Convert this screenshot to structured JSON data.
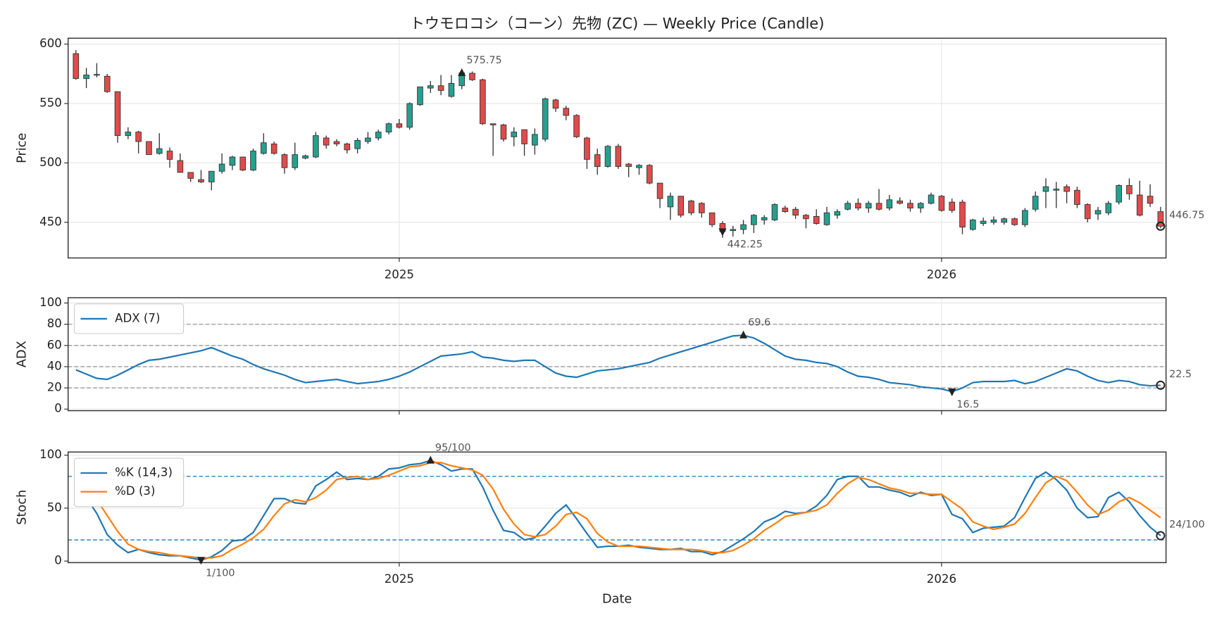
{
  "chart_data": [
    {
      "type": "candlestick",
      "title": "トウモロコシ（コーン）先物 (ZC) — Weekly Price (Candle)",
      "ylabel": "Price",
      "categories": [
        null,
        null,
        null,
        null,
        null,
        null,
        null,
        null,
        null,
        null,
        null,
        null,
        null,
        null,
        null,
        null,
        null,
        null,
        null,
        null,
        null,
        null,
        null,
        null,
        null,
        null,
        null,
        null,
        null,
        null,
        null,
        "2025",
        null,
        null,
        null,
        null,
        null,
        null,
        null,
        null,
        null,
        null,
        null,
        null,
        null,
        null,
        null,
        null,
        null,
        null,
        null,
        null,
        null,
        null,
        null,
        null,
        null,
        null,
        null,
        null,
        null,
        null,
        null,
        null,
        null,
        null,
        null,
        null,
        null,
        null,
        null,
        null,
        null,
        null,
        null,
        null,
        null,
        null,
        null,
        null,
        null,
        null,
        null,
        "2026",
        null,
        null,
        null,
        null,
        null,
        null,
        null,
        null,
        null,
        null,
        null,
        null,
        null,
        null,
        null,
        null,
        null,
        null,
        null,
        null,
        null
      ],
      "open": [
        592,
        571,
        574,
        573,
        560,
        523,
        526,
        518,
        508,
        510,
        502,
        492,
        486,
        484,
        493,
        498,
        505,
        494,
        508,
        516,
        507,
        496,
        504,
        505,
        521,
        518,
        516,
        512,
        518,
        521,
        526,
        533,
        530,
        549,
        563,
        565,
        556,
        565,
        575.5,
        570,
        533,
        532,
        522,
        528,
        515,
        520,
        553,
        546,
        540,
        521,
        507,
        497,
        514,
        499,
        496,
        498,
        483,
        463,
        472,
        468,
        466,
        458,
        449,
        443,
        444,
        448,
        452,
        452,
        462,
        461,
        456,
        455,
        448,
        456,
        461,
        466,
        462,
        466,
        462,
        468,
        466,
        462,
        466,
        472,
        467,
        467,
        444,
        449,
        450,
        450,
        453,
        448,
        461,
        476,
        477,
        480,
        477,
        465,
        457,
        458,
        467,
        481,
        473,
        472,
        459
      ],
      "high": [
        595,
        580,
        584,
        575,
        560,
        530,
        527,
        518,
        525,
        513,
        508,
        492,
        494,
        493,
        508,
        506,
        505,
        512,
        525,
        518,
        508,
        517,
        507,
        526,
        523,
        520,
        517,
        521,
        526,
        528,
        534,
        537,
        551,
        564,
        569,
        574,
        574,
        577,
        577,
        571,
        533,
        533,
        530,
        528,
        529,
        555,
        554,
        548,
        541,
        522,
        512,
        515,
        516,
        500,
        499,
        499,
        483,
        475,
        472,
        469,
        467,
        458,
        451,
        447,
        452,
        457,
        456,
        466,
        464,
        463,
        457,
        461,
        463,
        461,
        468,
        470,
        468,
        478,
        473,
        471,
        469,
        467,
        475,
        473,
        470,
        469,
        453,
        454,
        455,
        454,
        454,
        462,
        476,
        487,
        484,
        482,
        480,
        466,
        463,
        468,
        482,
        487,
        485,
        482,
        463
      ],
      "low": [
        570,
        563,
        572,
        559,
        517,
        520,
        508,
        507,
        507,
        496,
        492,
        484,
        483,
        477,
        491,
        494,
        493,
        493,
        507,
        507,
        491,
        494,
        503,
        504,
        512,
        514,
        508,
        508,
        516,
        519,
        524,
        529,
        528,
        548,
        559,
        557,
        555,
        562,
        569,
        532,
        506,
        518,
        514,
        506,
        507,
        518,
        543,
        536,
        521,
        495,
        490,
        496,
        495,
        488,
        490,
        482,
        462,
        452,
        454,
        456,
        454,
        446,
        437,
        438,
        440,
        441,
        448,
        451,
        458,
        453,
        445,
        448,
        447,
        453,
        460,
        460,
        458,
        460,
        460,
        465,
        459,
        458,
        465,
        459,
        458,
        440,
        443,
        447,
        448,
        448,
        447,
        446,
        459,
        462,
        462,
        466,
        462,
        450,
        452,
        456,
        465,
        469,
        455,
        463,
        445
      ],
      "close": [
        571,
        574,
        574.5,
        560,
        523,
        526,
        518,
        507,
        512,
        503,
        492,
        487,
        484,
        493,
        499,
        505,
        494,
        510,
        517,
        508,
        496,
        507,
        506,
        523,
        515,
        516,
        511,
        519,
        521,
        526,
        533,
        530,
        550,
        564,
        565,
        561,
        567,
        575.75,
        570,
        533,
        532,
        520,
        526,
        516,
        524,
        554,
        546,
        540,
        522,
        503,
        497,
        514,
        497,
        497,
        498,
        483,
        470,
        472,
        456,
        458,
        458,
        448,
        442.25,
        444,
        448,
        456,
        454,
        465,
        459,
        456,
        453,
        449,
        458,
        459,
        466,
        462,
        466,
        461,
        469,
        466,
        462,
        466,
        473,
        460,
        460,
        446,
        452,
        451,
        452,
        453,
        448,
        460,
        472,
        480,
        478,
        476,
        465,
        453,
        460,
        466,
        481,
        474,
        456,
        466,
        446.75
      ],
      "up_color": "#26a08e",
      "down_color": "#e04b4b",
      "ylim": [
        420,
        605
      ],
      "yticks": [
        450,
        500,
        550,
        600
      ],
      "grid": true,
      "annotations": [
        {
          "kind": "max",
          "label": "575.75"
        },
        {
          "kind": "min",
          "label": "442.25"
        },
        {
          "kind": "last",
          "label": "446.75"
        }
      ]
    },
    {
      "type": "line",
      "ylabel": "ADX",
      "series": [
        {
          "name": "ADX (7)",
          "color": "#1f77b4",
          "values": [
            37,
            33,
            29,
            28,
            32,
            37,
            42,
            46,
            47,
            49,
            51,
            53,
            55,
            58,
            54,
            50,
            47,
            42,
            38,
            35,
            32,
            28,
            25,
            26,
            27,
            28,
            26,
            24,
            25,
            26,
            28,
            31,
            35,
            40,
            45,
            50,
            51,
            52,
            54,
            49,
            48,
            46,
            45,
            46,
            46,
            40,
            34,
            31,
            30,
            33,
            36,
            37,
            38,
            40,
            42,
            44,
            48,
            51,
            54,
            57,
            60,
            63,
            66,
            69,
            69.6,
            67,
            62,
            56,
            50,
            47,
            46,
            44,
            43,
            40,
            35,
            31,
            30,
            28,
            25,
            24,
            23,
            21,
            20,
            19,
            16.5,
            20,
            25,
            26,
            26,
            26,
            27,
            24,
            26,
            30,
            34,
            38,
            36,
            31,
            27,
            25,
            27,
            26,
            23,
            22,
            22.5
          ]
        }
      ],
      "ylim": [
        -1.5,
        105
      ],
      "yticks": [
        0,
        20,
        40,
        60,
        80,
        100
      ],
      "grid": true,
      "ref_lines": [
        20,
        40,
        60,
        80
      ],
      "ref_color": "#999999",
      "legend": "upper left",
      "annotations": [
        {
          "kind": "max",
          "label": "69.6"
        },
        {
          "kind": "min",
          "label": "16.5"
        },
        {
          "kind": "last",
          "label": "22.5"
        }
      ]
    },
    {
      "type": "line",
      "ylabel": "Stoch",
      "xlabel": "Date",
      "series": [
        {
          "name": "%K (14,3)",
          "color": "#1f77b4",
          "values": [
            70,
            60,
            45,
            25,
            15,
            8,
            11,
            8,
            6,
            5,
            5,
            3,
            1,
            4,
            10,
            19,
            20,
            27,
            43,
            59,
            59,
            55,
            54,
            71,
            77,
            84,
            77,
            78,
            77,
            80,
            87,
            88,
            91,
            92,
            95,
            91,
            85,
            87,
            87,
            70,
            48,
            29,
            27,
            20,
            22,
            33,
            45,
            53,
            40,
            26,
            13,
            14,
            14,
            15,
            13,
            12,
            11,
            11,
            12,
            9,
            9,
            6,
            9,
            15,
            21,
            28,
            37,
            41,
            47,
            45,
            46,
            52,
            62,
            77,
            80,
            80,
            70,
            70,
            67,
            65,
            61,
            65,
            62,
            63,
            44,
            40,
            27,
            31,
            32,
            33,
            41,
            60,
            78,
            84,
            77,
            67,
            50,
            41,
            42,
            60,
            65,
            56,
            43,
            32,
            24
          ]
        },
        {
          "name": "%D (3)",
          "color": "#ff7f0e",
          "values": [
            72,
            67,
            58,
            43,
            28,
            16,
            11,
            9,
            8,
            6,
            5,
            4,
            3,
            3,
            5,
            11,
            16,
            22,
            30,
            43,
            54,
            58,
            56,
            60,
            67,
            77,
            79,
            80,
            77,
            78,
            81,
            85,
            89,
            90,
            93,
            93,
            90,
            88,
            86,
            81,
            68,
            49,
            35,
            25,
            23,
            25,
            33,
            44,
            46,
            40,
            26,
            18,
            14,
            14,
            14,
            13,
            12,
            11,
            11,
            11,
            10,
            8,
            8,
            10,
            15,
            21,
            29,
            35,
            42,
            44,
            46,
            48,
            53,
            64,
            73,
            79,
            77,
            73,
            69,
            67,
            64,
            64,
            63,
            63,
            56,
            49,
            37,
            33,
            30,
            32,
            35,
            45,
            60,
            74,
            80,
            76,
            65,
            53,
            44,
            48,
            56,
            60,
            55,
            48,
            41
          ]
        }
      ],
      "ylim": [
        -1.5,
        103
      ],
      "yticks": [
        0,
        50,
        100
      ],
      "grid": true,
      "ref_lines": [
        20,
        80
      ],
      "ref_color": "#1f77b4",
      "legend": "upper left",
      "annotations": [
        {
          "kind": "max",
          "label": "95/100"
        },
        {
          "kind": "min",
          "label": "1/100"
        },
        {
          "kind": "last",
          "label": "24/100"
        }
      ]
    }
  ]
}
